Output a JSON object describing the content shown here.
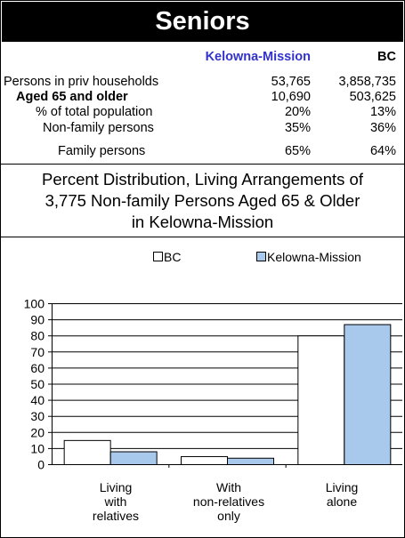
{
  "header": {
    "title": "Seniors"
  },
  "table": {
    "columns": [
      "Kelowna-Mission",
      "BC"
    ],
    "rows": [
      {
        "label": "Persons in priv households",
        "km": "53,765",
        "bc": "3,858,735"
      },
      {
        "label": "Aged 65 and older",
        "km": "10,690",
        "bc": "503,625"
      },
      {
        "label": "% of total population",
        "km": "20%",
        "bc": "13%"
      },
      {
        "label": "Non-family persons",
        "km": "35%",
        "bc": "36%"
      },
      {
        "label": "Family persons",
        "km": "65%",
        "bc": "64%"
      }
    ]
  },
  "chart_title": {
    "line1": "Percent Distribution, Living Arrangements of",
    "line2": "3,775 Non-family Persons Aged 65 & Older",
    "line3": "in Kelowna-Mission"
  },
  "chart_data": {
    "type": "bar",
    "title": "Percent Distribution, Living Arrangements of 3,775 Non-family Persons Aged 65 & Older in Kelowna-Mission",
    "categories": [
      [
        "Living",
        "with",
        "relatives"
      ],
      [
        "With",
        "non-relatives",
        "only"
      ],
      [
        "Living",
        "alone"
      ]
    ],
    "series": [
      {
        "name": "BC",
        "values": [
          15,
          5,
          80
        ],
        "color": "#ffffff"
      },
      {
        "name": "Kelowna-Mission",
        "values": [
          8,
          4,
          87
        ],
        "color": "#a8c8ec"
      }
    ],
    "ylim": [
      0,
      100
    ],
    "yticks": [
      0,
      10,
      20,
      30,
      40,
      50,
      60,
      70,
      80,
      90,
      100
    ],
    "grid": true,
    "legend": "top"
  }
}
